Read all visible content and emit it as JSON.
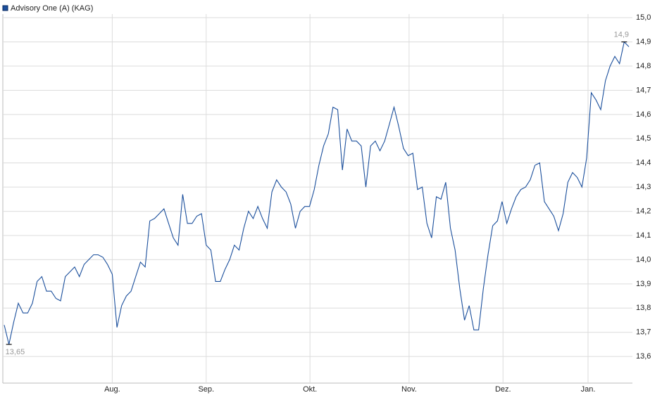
{
  "chart_data": {
    "type": "line",
    "series": [
      {
        "name": "Advisory One (A) (KAG)",
        "color": "#1b4f9c",
        "values": [
          13.73,
          13.65,
          13.74,
          13.82,
          13.78,
          13.78,
          13.82,
          13.91,
          13.93,
          13.87,
          13.87,
          13.84,
          13.83,
          13.93,
          13.95,
          13.97,
          13.93,
          13.98,
          14.0,
          14.02,
          14.02,
          14.01,
          13.98,
          13.94,
          13.72,
          13.81,
          13.85,
          13.87,
          13.93,
          13.99,
          13.97,
          14.16,
          14.17,
          14.19,
          14.21,
          14.15,
          14.09,
          14.06,
          14.27,
          14.15,
          14.15,
          14.18,
          14.19,
          14.06,
          14.04,
          13.91,
          13.91,
          13.96,
          14.0,
          14.06,
          14.04,
          14.13,
          14.2,
          14.17,
          14.22,
          14.17,
          14.13,
          14.28,
          14.33,
          14.3,
          14.28,
          14.23,
          14.13,
          14.2,
          14.22,
          14.22,
          14.29,
          14.39,
          14.47,
          14.52,
          14.63,
          14.62,
          14.37,
          14.54,
          14.49,
          14.49,
          14.47,
          14.3,
          14.47,
          14.49,
          14.45,
          14.49,
          14.56,
          14.63,
          14.55,
          14.46,
          14.43,
          14.44,
          14.29,
          14.3,
          14.15,
          14.09,
          14.26,
          14.25,
          14.32,
          14.13,
          14.04,
          13.88,
          13.75,
          13.81,
          13.71,
          13.71,
          13.88,
          14.02,
          14.14,
          14.16,
          14.24,
          14.15,
          14.21,
          14.26,
          14.29,
          14.3,
          14.33,
          14.39,
          14.4,
          14.24,
          14.21,
          14.18,
          14.12,
          14.19,
          14.32,
          14.36,
          14.34,
          14.3,
          14.42,
          14.69,
          14.66,
          14.62,
          14.74,
          14.8,
          14.84,
          14.81,
          14.9,
          14.88
        ],
        "value_labels": [
          null,
          "13,65",
          null,
          null,
          null,
          null,
          null,
          null,
          null,
          null,
          null,
          null,
          null,
          null,
          null,
          null,
          null,
          null,
          null,
          null,
          null,
          null,
          null,
          null,
          null,
          null,
          null,
          null,
          null,
          null,
          null,
          null,
          null,
          null,
          null,
          null,
          null,
          null,
          null,
          null,
          null,
          null,
          null,
          null,
          null,
          null,
          null,
          null,
          null,
          null,
          null,
          null,
          null,
          null,
          null,
          null,
          null,
          null,
          null,
          null,
          null,
          null,
          null,
          null,
          null,
          null,
          null,
          null,
          null,
          null,
          null,
          null,
          null,
          null,
          null,
          null,
          null,
          null,
          null,
          null,
          null,
          null,
          null,
          null,
          null,
          null,
          null,
          null,
          null,
          null,
          null,
          null,
          null,
          null,
          null,
          null,
          null,
          null,
          null,
          null,
          null,
          null,
          null,
          null,
          null,
          null,
          null,
          null,
          null,
          null,
          null,
          null,
          null,
          null,
          null,
          null,
          null,
          null,
          null,
          null,
          null,
          null,
          null,
          null,
          null,
          null,
          null,
          null,
          null,
          null,
          null,
          null,
          "14,9",
          null
        ]
      }
    ],
    "xticks": [
      {
        "value": 23,
        "label": "Aug."
      },
      {
        "value": 43,
        "label": "Sep."
      },
      {
        "value": 65.1,
        "label": "Okt."
      },
      {
        "value": 86.2,
        "label": "Nov."
      },
      {
        "value": 106.2,
        "label": "Dez."
      },
      {
        "value": 124.3,
        "label": "Jan."
      }
    ],
    "ylim": [
      13.49,
      15.015
    ],
    "yticks": [
      {
        "value": 13.6,
        "label": "13,6"
      },
      {
        "value": 13.7,
        "label": "13,7"
      },
      {
        "value": 13.8,
        "label": "13,8"
      },
      {
        "value": 13.9,
        "label": "13,9"
      },
      {
        "value": 14.0,
        "label": "14,0"
      },
      {
        "value": 14.1,
        "label": "14,1"
      },
      {
        "value": 14.2,
        "label": "14,2"
      },
      {
        "value": 14.3,
        "label": "14,3"
      },
      {
        "value": 14.4,
        "label": "14,4"
      },
      {
        "value": 14.5,
        "label": "14,5"
      },
      {
        "value": 14.6,
        "label": "14,6"
      },
      {
        "value": 14.7,
        "label": "14,7"
      },
      {
        "value": 14.8,
        "label": "14,8"
      },
      {
        "value": 14.9,
        "label": "14,9"
      },
      {
        "value": 15.0,
        "label": "15,0"
      }
    ],
    "grid": true
  }
}
